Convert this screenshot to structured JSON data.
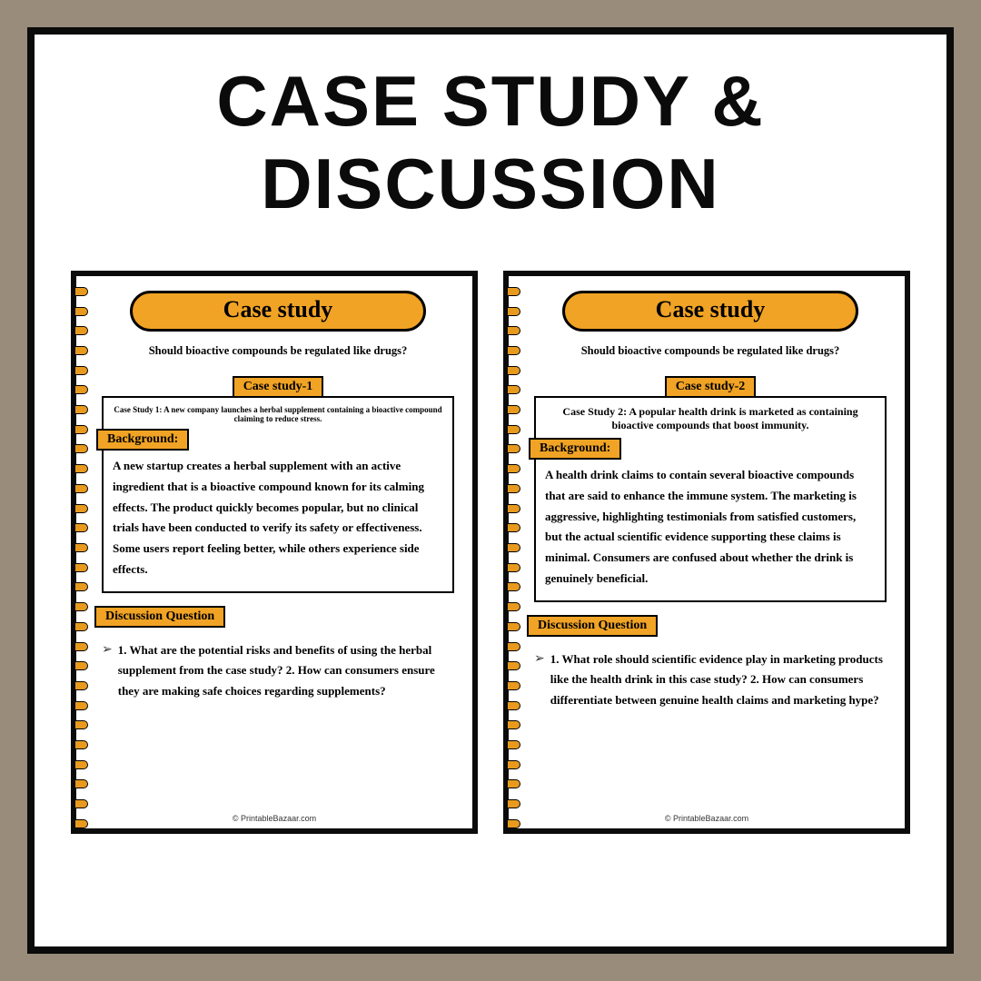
{
  "title": "Case study & Discussion",
  "colors": {
    "frame_bg": "#9a8c7b",
    "page_bg": "#ffffff",
    "border": "#0b0b0b",
    "accent": "#f0a324",
    "spiral": "#e89a1f"
  },
  "pages": [
    {
      "banner": "Case study",
      "subtitle": "Should bioactive compounds be regulated like drugs?",
      "case_chip": "Case study-1",
      "intro": "Case Study 1: A new company launches a herbal supplement containing a bioactive compound claiming to reduce stress.",
      "background_label": "Background:",
      "background_text": "A new startup creates a herbal supplement with an active ingredient that is a bioactive compound known for its calming effects. The product quickly becomes popular, but no clinical trials have been conducted to verify its safety or effectiveness. Some users report feeling better, while others experience side effects.",
      "discussion_label": "Discussion Question",
      "discussion_text": "1. What are the potential risks and benefits of using the herbal supplement from the case study? 2. How can consumers ensure they are making safe choices regarding supplements?",
      "footer": "© PrintableBazaar.com"
    },
    {
      "banner": "Case study",
      "subtitle": "Should bioactive compounds be regulated like drugs?",
      "case_chip": "Case study-2",
      "intro": "Case Study 2: A popular health drink is marketed as containing bioactive compounds that boost immunity.",
      "background_label": "Background:",
      "background_text": "A health drink claims to contain several bioactive compounds that are said to enhance the immune system. The marketing is aggressive, highlighting testimonials from satisfied customers, but the actual scientific evidence supporting these claims is minimal. Consumers are confused about whether the drink is genuinely beneficial.",
      "discussion_label": "Discussion Question",
      "discussion_text": "1. What role should scientific evidence play in marketing products like the health drink in this case study? 2. How can consumers differentiate between genuine health claims and marketing hype?",
      "footer": "© PrintableBazaar.com"
    }
  ]
}
